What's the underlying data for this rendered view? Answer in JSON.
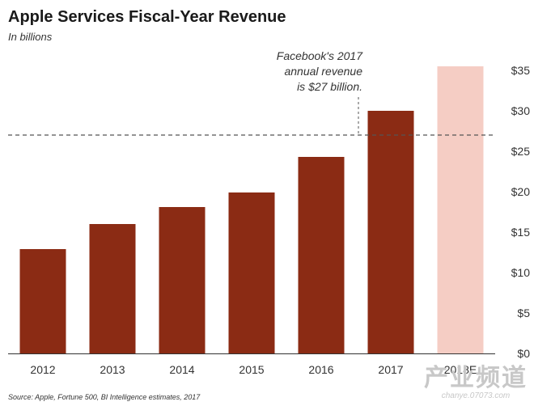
{
  "chart_data": {
    "type": "bar",
    "title": "Apple Services Fiscal-Year Revenue",
    "subtitle": "In billions",
    "categories": [
      "2012",
      "2013",
      "2014",
      "2015",
      "2016",
      "2017",
      "2018E"
    ],
    "values": [
      12.9,
      16.0,
      18.1,
      19.9,
      24.3,
      30.0,
      35.5
    ],
    "estimated": [
      false,
      false,
      false,
      false,
      false,
      false,
      true
    ],
    "ylim": [
      0,
      35
    ],
    "yticks": [
      "$0",
      "$5",
      "$10",
      "$15",
      "$20",
      "$25",
      "$30",
      "$35"
    ],
    "reference_value": 27,
    "annotation": [
      "Facebook's 2017",
      "annual revenue",
      "is $27 billion."
    ],
    "source": "Source: Apple, Fortune 500, BI Intelligence estimates, 2017",
    "grid": false,
    "colors": {
      "bar": "#8b2b14",
      "estimate_bar": "#f5cdc4",
      "reference_line": "#555555",
      "axis": "#333333"
    }
  },
  "watermark": {
    "main": "产业频道",
    "url": "chanye.07073.com"
  }
}
